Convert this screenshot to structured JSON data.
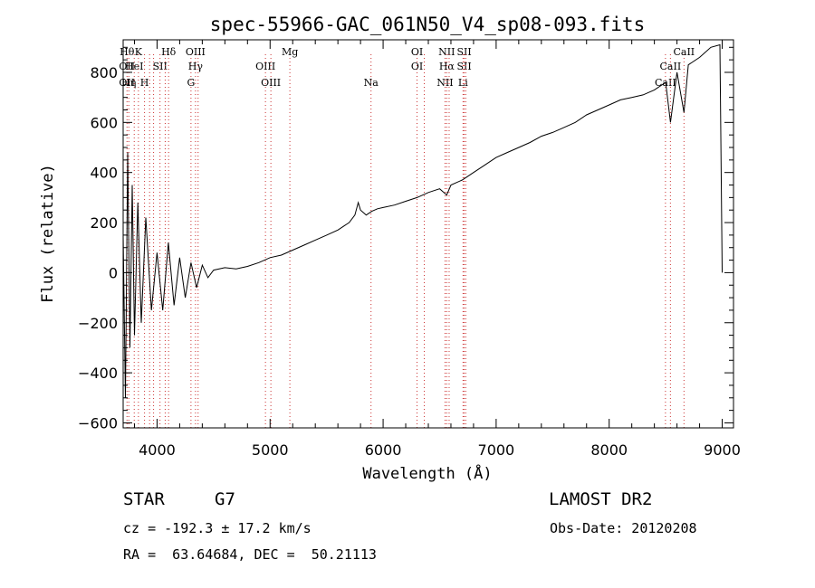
{
  "chart_data": {
    "type": "line",
    "title": "spec-55966-GAC_061N50_V4_sp08-093.fits",
    "xlabel": "Wavelength (Å)",
    "ylabel": "Flux (relative)",
    "xlim": [
      3700,
      9100
    ],
    "ylim": [
      -620,
      930
    ],
    "x_ticks": [
      4000,
      5000,
      6000,
      7000,
      8000,
      9000
    ],
    "y_ticks": [
      -600,
      -400,
      -200,
      0,
      200,
      400,
      600,
      800
    ],
    "grid": false,
    "line_color": "#000000",
    "marker_color": "#cc3333",
    "series": [
      {
        "x": [
          3700,
          3720,
          3740,
          3760,
          3780,
          3800,
          3830,
          3860,
          3900,
          3950,
          4000,
          4050,
          4100,
          4150,
          4200,
          4250,
          4300,
          4350,
          4400,
          4450,
          4500,
          4600,
          4700,
          4800,
          4900,
          5000,
          5100,
          5200,
          5300,
          5400,
          5500,
          5600,
          5700,
          5750,
          5780,
          5800,
          5850,
          5900,
          5950,
          6000,
          6100,
          6200,
          6300,
          6400,
          6500,
          6563,
          6600,
          6700,
          6800,
          6900,
          7000,
          7100,
          7200,
          7300,
          7400,
          7500,
          7600,
          7700,
          7800,
          7900,
          8000,
          8100,
          8200,
          8300,
          8400,
          8500,
          8542,
          8600,
          8662,
          8700,
          8800,
          8900,
          8980,
          9000
        ],
        "y": [
          150,
          -500,
          480,
          -300,
          350,
          -250,
          280,
          -200,
          220,
          -150,
          80,
          -150,
          120,
          -130,
          60,
          -100,
          40,
          -60,
          30,
          -20,
          10,
          20,
          15,
          25,
          40,
          60,
          70,
          90,
          110,
          130,
          150,
          170,
          200,
          230,
          280,
          250,
          230,
          245,
          255,
          260,
          270,
          285,
          300,
          320,
          335,
          310,
          350,
          370,
          400,
          430,
          460,
          480,
          500,
          520,
          545,
          560,
          580,
          600,
          630,
          650,
          670,
          690,
          700,
          710,
          730,
          760,
          600,
          800,
          640,
          830,
          860,
          900,
          910,
          0
        ]
      }
    ],
    "line_markers": [
      {
        "x": 3734,
        "labels": [
          "Hθ",
          "OII",
          "OII"
        ]
      },
      {
        "x": 3750,
        "labels": [
          "",
          "",
          "Hη"
        ]
      },
      {
        "x": 3798,
        "labels": [
          "",
          "HeI",
          ""
        ]
      },
      {
        "x": 3835,
        "labels": [
          "K",
          "",
          ""
        ]
      },
      {
        "x": 3889,
        "labels": [
          "",
          "",
          "H"
        ]
      },
      {
        "x": 3934,
        "labels": [
          "",
          "",
          ""
        ]
      },
      {
        "x": 3969,
        "labels": [
          "",
          "",
          ""
        ]
      },
      {
        "x": 4026,
        "labels": [
          "",
          "SII",
          ""
        ]
      },
      {
        "x": 4072,
        "labels": [
          "",
          "",
          ""
        ]
      },
      {
        "x": 4102,
        "labels": [
          "Hδ",
          "",
          ""
        ]
      },
      {
        "x": 4300,
        "labels": [
          "",
          "",
          "G"
        ]
      },
      {
        "x": 4340,
        "labels": [
          "OIII",
          "Hγ",
          ""
        ]
      },
      {
        "x": 4363,
        "labels": [
          "",
          "",
          ""
        ]
      },
      {
        "x": 4959,
        "labels": [
          "",
          "OIII",
          ""
        ]
      },
      {
        "x": 5007,
        "labels": [
          "",
          "",
          "OIII"
        ]
      },
      {
        "x": 5175,
        "labels": [
          "Mg",
          "",
          ""
        ]
      },
      {
        "x": 5893,
        "labels": [
          "",
          "",
          "Na"
        ]
      },
      {
        "x": 6300,
        "labels": [
          "OI",
          "OI",
          ""
        ]
      },
      {
        "x": 6364,
        "labels": [
          "",
          "",
          ""
        ]
      },
      {
        "x": 6548,
        "labels": [
          "",
          "",
          "NII"
        ]
      },
      {
        "x": 6563,
        "labels": [
          "NII",
          "Hα",
          ""
        ]
      },
      {
        "x": 6584,
        "labels": [
          "",
          "",
          ""
        ]
      },
      {
        "x": 6707,
        "labels": [
          "",
          "",
          "Li"
        ]
      },
      {
        "x": 6717,
        "labels": [
          "SII",
          "SII",
          ""
        ]
      },
      {
        "x": 6731,
        "labels": [
          "",
          "",
          ""
        ]
      },
      {
        "x": 8498,
        "labels": [
          "",
          "",
          "CaII"
        ]
      },
      {
        "x": 8542,
        "labels": [
          "",
          "CaII",
          ""
        ]
      },
      {
        "x": 8662,
        "labels": [
          "CaII",
          "",
          ""
        ]
      }
    ]
  },
  "info": {
    "class_label": "STAR",
    "subclass_label": "G7",
    "survey": "LAMOST DR2",
    "velocity": "cz = -192.3 ± 17.2 km/s",
    "obs_date": "Obs-Date: 20120208",
    "coords": "RA =  63.64684, DEC =  50.21113"
  }
}
